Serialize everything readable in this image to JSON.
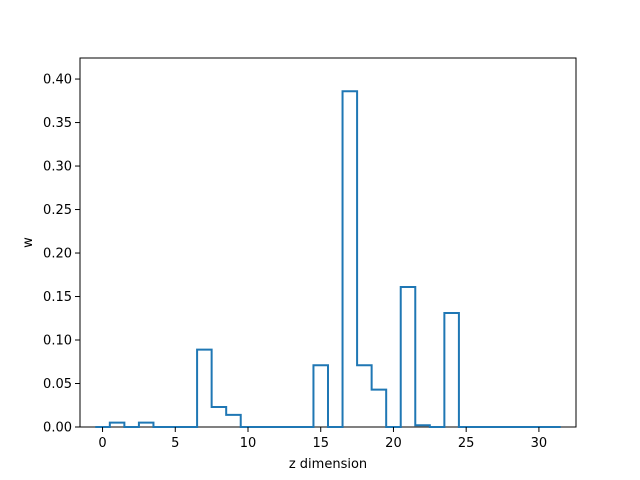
{
  "chart_data": {
    "type": "step",
    "xlabel": "z dimension",
    "ylabel": "w",
    "xlim": [
      -1.55,
      32.55
    ],
    "ylim": [
      0.0,
      0.4242
    ],
    "x_ticks": [
      0,
      5,
      10,
      15,
      20,
      25,
      30
    ],
    "x_tick_labels": [
      "0",
      "5",
      "10",
      "15",
      "20",
      "25",
      "30"
    ],
    "y_ticks": [
      0.0,
      0.05,
      0.1,
      0.15,
      0.2,
      0.25,
      0.3,
      0.35,
      0.4
    ],
    "y_tick_labels": [
      "0.00",
      "0.05",
      "0.10",
      "0.15",
      "0.20",
      "0.25",
      "0.30",
      "0.35",
      "0.40"
    ],
    "grid": false,
    "series": [
      {
        "color": "#1f77b4",
        "x": [
          0,
          1,
          2,
          3,
          4,
          5,
          6,
          7,
          8,
          9,
          10,
          11,
          12,
          13,
          14,
          15,
          16,
          17,
          18,
          19,
          20,
          21,
          22,
          23,
          24,
          25,
          26,
          27,
          28,
          29,
          30,
          31
        ],
        "values": [
          0.0,
          0.005,
          0.0,
          0.005,
          0.0,
          0.0,
          0.0,
          0.089,
          0.023,
          0.014,
          0.0,
          0.0,
          0.0,
          0.0,
          0.0,
          0.071,
          0.0,
          0.386,
          0.071,
          0.043,
          0.0,
          0.161,
          0.002,
          0.0,
          0.131,
          0.0,
          0.0,
          0.0,
          0.0,
          0.0,
          0.0,
          0.0
        ]
      }
    ]
  }
}
